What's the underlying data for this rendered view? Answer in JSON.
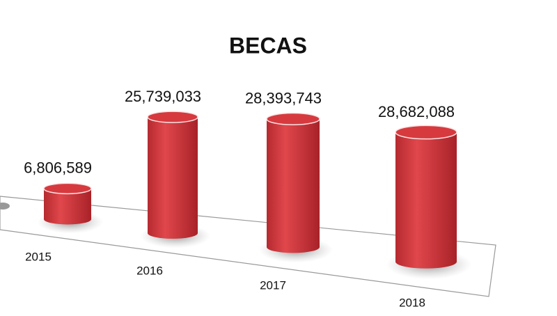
{
  "chart_data": {
    "type": "bar",
    "title": "BECAS",
    "categories": [
      "2015",
      "2016",
      "2017",
      "2018"
    ],
    "values": [
      6806589,
      25739033,
      28393743,
      28682088
    ],
    "value_labels": [
      "6,806,589",
      "25,739,033",
      "28,393,743",
      "28,682,088"
    ],
    "color": "#d63a3f"
  }
}
